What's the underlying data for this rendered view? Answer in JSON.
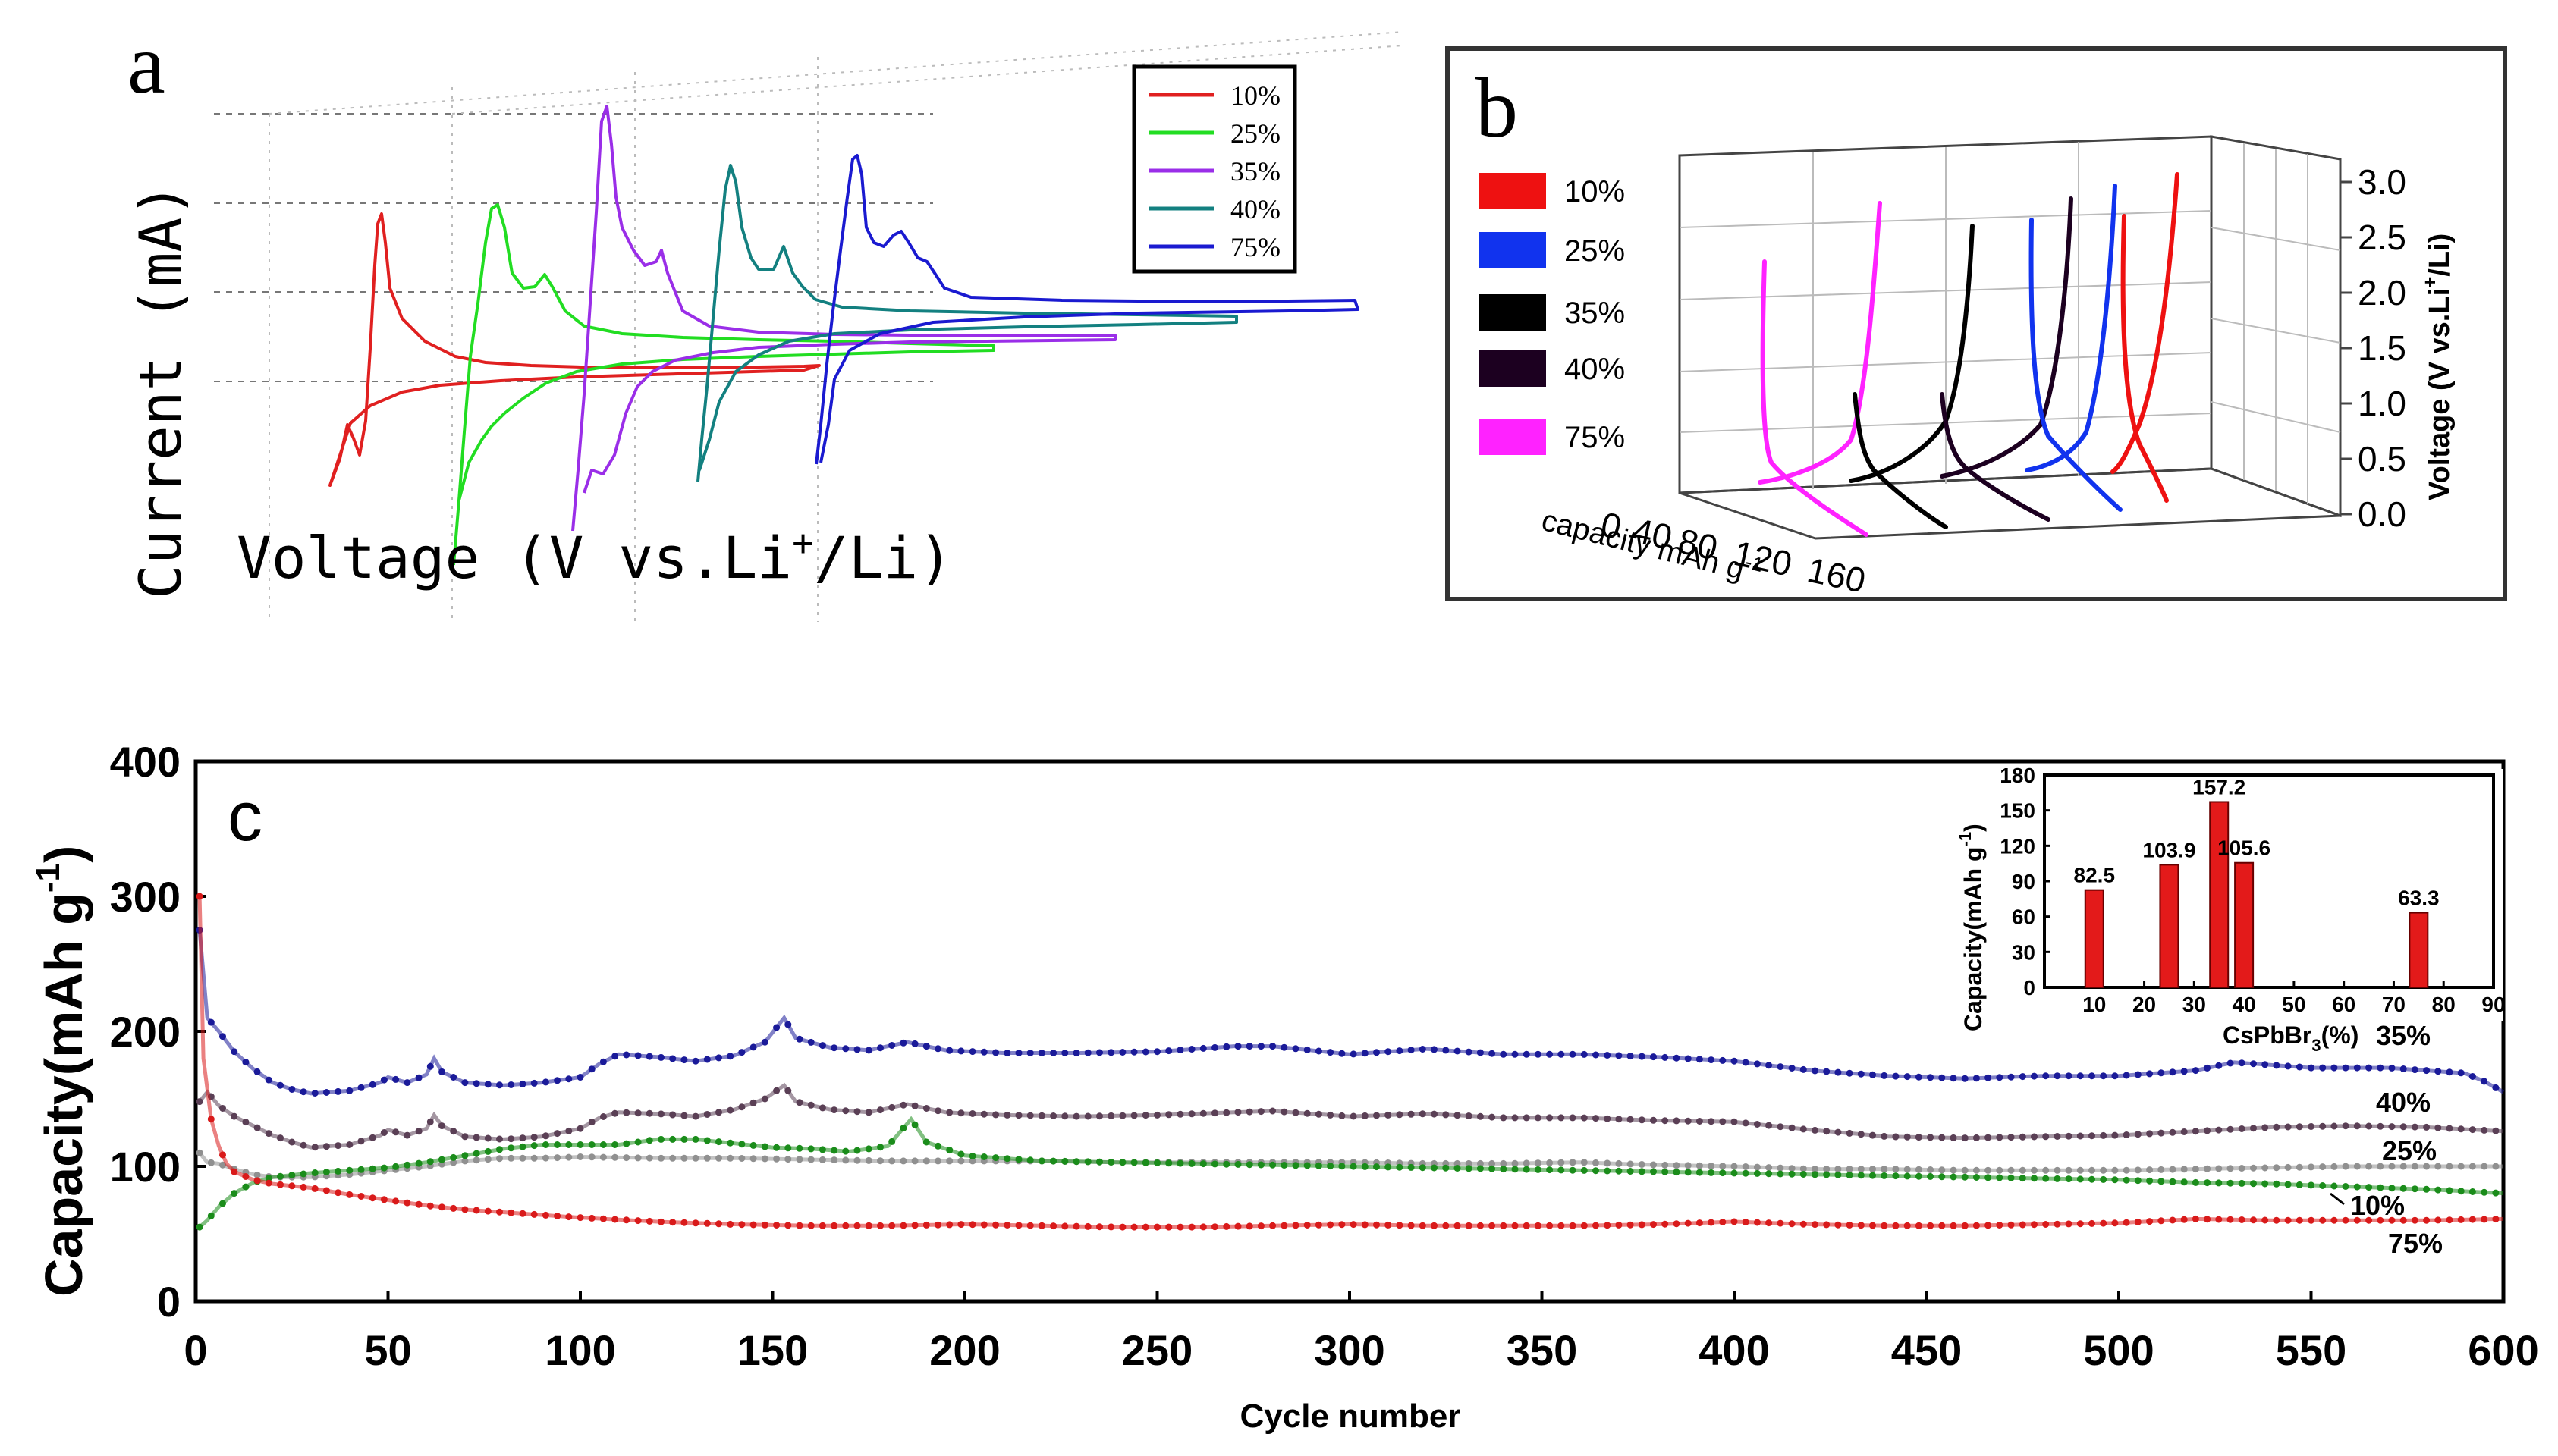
{
  "colors": {
    "pct10": "#e02020",
    "pct25": "#22dd22",
    "pct35": "#9a2ee8",
    "pct40": "#138080",
    "pct75": "#1a1ad0",
    "b10": "#ee1111",
    "b25": "#1133ee",
    "b35": "#000000",
    "b40": "#1c0020",
    "b75": "#ff22ff",
    "c35": "#1a1a99",
    "c40": "#5a3f55",
    "c25": "#909090",
    "c10": "#1a8c1a",
    "c75": "#d91a1a",
    "bar": "#e31a1a"
  },
  "chart_data": [
    {
      "id": "a",
      "type": "line",
      "panel_label": "a",
      "title": "",
      "xlabel_main": "Voltage (V vs.Li",
      "xlabel_sup": "+",
      "xlabel_tail": "/Li)",
      "ylabel": "Current (mA)",
      "grid": true,
      "legend_position": "top-right",
      "series": [
        {
          "name": "10%",
          "color_key": "pct10"
        },
        {
          "name": "25%",
          "color_key": "pct25"
        },
        {
          "name": "35%",
          "color_key": "pct35"
        },
        {
          "name": "40%",
          "color_key": "pct40"
        },
        {
          "name": "75%",
          "color_key": "pct75"
        }
      ]
    },
    {
      "id": "b",
      "type": "line",
      "panel_label": "b",
      "title": "",
      "xlabel": "capacity mAh g",
      "xlabel_sup": "-1",
      "x_ticks": [
        "0",
        "40",
        "80",
        "120",
        "160"
      ],
      "ylabel": "Voltage (V vs.Li",
      "ylabel_sup": "+",
      "ylabel_tail": "/Li)",
      "y_ticks": [
        "0.0",
        "0.5",
        "1.0",
        "1.5",
        "2.0",
        "2.5",
        "3.0"
      ],
      "legend_position": "left",
      "series": [
        {
          "name": "10%",
          "color_key": "b10"
        },
        {
          "name": "25%",
          "color_key": "b25"
        },
        {
          "name": "35%",
          "color_key": "b35"
        },
        {
          "name": "40%",
          "color_key": "b40"
        },
        {
          "name": "75%",
          "color_key": "b75"
        }
      ]
    },
    {
      "id": "c",
      "type": "scatter",
      "panel_label": "c",
      "title": "",
      "xlabel": "Cycle number",
      "ylabel": "Capacity(mAh g",
      "ylabel_sup": "-1",
      "ylabel_tail": ")",
      "xlim": [
        0,
        600
      ],
      "ylim": [
        0,
        400
      ],
      "x_ticks": [
        0,
        50,
        100,
        150,
        200,
        250,
        300,
        350,
        400,
        450,
        500,
        550,
        600
      ],
      "y_ticks": [
        0,
        100,
        200,
        300,
        400
      ],
      "series": [
        {
          "name": "35%",
          "color_key": "c35",
          "points": [
            [
              1,
              275
            ],
            [
              3,
              210
            ],
            [
              6,
              200
            ],
            [
              10,
              185
            ],
            [
              15,
              172
            ],
            [
              20,
              162
            ],
            [
              25,
              157
            ],
            [
              30,
              154
            ],
            [
              40,
              156
            ],
            [
              48,
              162
            ],
            [
              50,
              166
            ],
            [
              55,
              162
            ],
            [
              60,
              168
            ],
            [
              62,
              180
            ],
            [
              64,
              170
            ],
            [
              70,
              162
            ],
            [
              80,
              160
            ],
            [
              90,
              162
            ],
            [
              100,
              166
            ],
            [
              105,
              176
            ],
            [
              110,
              183
            ],
            [
              120,
              181
            ],
            [
              130,
              178
            ],
            [
              140,
              182
            ],
            [
              148,
              192
            ],
            [
              153,
              210
            ],
            [
              156,
              195
            ],
            [
              165,
              188
            ],
            [
              175,
              186
            ],
            [
              185,
              192
            ],
            [
              195,
              186
            ],
            [
              210,
              184
            ],
            [
              230,
              184
            ],
            [
              250,
              185
            ],
            [
              270,
              189
            ],
            [
              280,
              189
            ],
            [
              300,
              183
            ],
            [
              320,
              187
            ],
            [
              340,
              183
            ],
            [
              360,
              183
            ],
            [
              380,
              181
            ],
            [
              400,
              178
            ],
            [
              420,
              171
            ],
            [
              440,
              167
            ],
            [
              460,
              165
            ],
            [
              480,
              167
            ],
            [
              500,
              167
            ],
            [
              520,
              171
            ],
            [
              530,
              177
            ],
            [
              550,
              173
            ],
            [
              570,
              173
            ],
            [
              590,
              169
            ],
            [
              595,
              163
            ],
            [
              600,
              155
            ]
          ]
        },
        {
          "name": "40%",
          "color_key": "c40",
          "points": [
            [
              1,
              148
            ],
            [
              3,
              155
            ],
            [
              6,
              145
            ],
            [
              10,
              137
            ],
            [
              15,
              130
            ],
            [
              20,
              123
            ],
            [
              25,
              118
            ],
            [
              30,
              114
            ],
            [
              40,
              116
            ],
            [
              48,
              123
            ],
            [
              50,
              127
            ],
            [
              55,
              123
            ],
            [
              60,
              128
            ],
            [
              62,
              138
            ],
            [
              64,
              130
            ],
            [
              70,
              122
            ],
            [
              80,
              120
            ],
            [
              90,
              122
            ],
            [
              100,
              128
            ],
            [
              105,
              136
            ],
            [
              110,
              140
            ],
            [
              120,
              139
            ],
            [
              130,
              137
            ],
            [
              140,
              142
            ],
            [
              148,
              150
            ],
            [
              153,
              160
            ],
            [
              156,
              148
            ],
            [
              165,
              142
            ],
            [
              175,
              140
            ],
            [
              185,
              146
            ],
            [
              195,
              140
            ],
            [
              210,
              138
            ],
            [
              230,
              137
            ],
            [
              250,
              138
            ],
            [
              270,
              140
            ],
            [
              280,
              141
            ],
            [
              300,
              137
            ],
            [
              320,
              139
            ],
            [
              340,
              136
            ],
            [
              360,
              136
            ],
            [
              380,
              134
            ],
            [
              400,
              133
            ],
            [
              420,
              127
            ],
            [
              440,
              122
            ],
            [
              460,
              121
            ],
            [
              480,
              122
            ],
            [
              500,
              123
            ],
            [
              520,
              126
            ],
            [
              540,
              129
            ],
            [
              560,
              130
            ],
            [
              580,
              129
            ],
            [
              600,
              126
            ]
          ]
        },
        {
          "name": "25%",
          "color_key": "c25",
          "points": [
            [
              1,
              110
            ],
            [
              3,
              103
            ],
            [
              6,
              102
            ],
            [
              10,
              98
            ],
            [
              15,
              94
            ],
            [
              20,
              92
            ],
            [
              30,
              92
            ],
            [
              40,
              94
            ],
            [
              50,
              97
            ],
            [
              60,
              100
            ],
            [
              70,
              104
            ],
            [
              80,
              106
            ],
            [
              90,
              106
            ],
            [
              100,
              107
            ],
            [
              120,
              106
            ],
            [
              140,
              106
            ],
            [
              160,
              105
            ],
            [
              180,
              104
            ],
            [
              200,
              104
            ],
            [
              220,
              104
            ],
            [
              240,
              103
            ],
            [
              260,
              103
            ],
            [
              280,
              103
            ],
            [
              300,
              103
            ],
            [
              320,
              102
            ],
            [
              340,
              102
            ],
            [
              360,
              103
            ],
            [
              380,
              101
            ],
            [
              400,
              100
            ],
            [
              420,
              98
            ],
            [
              440,
              98
            ],
            [
              460,
              97
            ],
            [
              480,
              97
            ],
            [
              500,
              97
            ],
            [
              520,
              98
            ],
            [
              540,
              99
            ],
            [
              560,
              100
            ],
            [
              580,
              100
            ],
            [
              600,
              100
            ]
          ]
        },
        {
          "name": "10%",
          "color_key": "c10",
          "points": [
            [
              1,
              55
            ],
            [
              3,
              60
            ],
            [
              6,
              70
            ],
            [
              10,
              80
            ],
            [
              15,
              88
            ],
            [
              20,
              92
            ],
            [
              30,
              95
            ],
            [
              40,
              97
            ],
            [
              50,
              99
            ],
            [
              60,
              103
            ],
            [
              70,
              108
            ],
            [
              80,
              113
            ],
            [
              90,
              116
            ],
            [
              100,
              116
            ],
            [
              110,
              116
            ],
            [
              120,
              120
            ],
            [
              130,
              120
            ],
            [
              140,
              117
            ],
            [
              150,
              114
            ],
            [
              160,
              113
            ],
            [
              170,
              111
            ],
            [
              180,
              115
            ],
            [
              186,
              135
            ],
            [
              190,
              118
            ],
            [
              200,
              108
            ],
            [
              220,
              104
            ],
            [
              240,
              103
            ],
            [
              260,
              102
            ],
            [
              280,
              101
            ],
            [
              300,
              100
            ],
            [
              320,
              99
            ],
            [
              340,
              98
            ],
            [
              360,
              97
            ],
            [
              380,
              96
            ],
            [
              400,
              95
            ],
            [
              420,
              94
            ],
            [
              440,
              93
            ],
            [
              460,
              92
            ],
            [
              480,
              91
            ],
            [
              500,
              90
            ],
            [
              520,
              88
            ],
            [
              540,
              87
            ],
            [
              560,
              85
            ],
            [
              580,
              83
            ],
            [
              600,
              80
            ]
          ]
        },
        {
          "name": "75%",
          "color_key": "c75",
          "points": [
            [
              1,
              300
            ],
            [
              2,
              180
            ],
            [
              4,
              135
            ],
            [
              6,
              115
            ],
            [
              8,
              102
            ],
            [
              10,
              96
            ],
            [
              15,
              90
            ],
            [
              20,
              87
            ],
            [
              30,
              84
            ],
            [
              40,
              79
            ],
            [
              50,
              75
            ],
            [
              60,
              71
            ],
            [
              70,
              68
            ],
            [
              80,
              66
            ],
            [
              90,
              64
            ],
            [
              100,
              62
            ],
            [
              120,
              59
            ],
            [
              140,
              57
            ],
            [
              160,
              56
            ],
            [
              180,
              56
            ],
            [
              200,
              57
            ],
            [
              220,
              56
            ],
            [
              240,
              55
            ],
            [
              260,
              55
            ],
            [
              280,
              56
            ],
            [
              300,
              57
            ],
            [
              320,
              56
            ],
            [
              340,
              56
            ],
            [
              360,
              56
            ],
            [
              380,
              57
            ],
            [
              400,
              59
            ],
            [
              420,
              57
            ],
            [
              440,
              56
            ],
            [
              460,
              56
            ],
            [
              480,
              57
            ],
            [
              500,
              58
            ],
            [
              520,
              61
            ],
            [
              540,
              60
            ],
            [
              560,
              60
            ],
            [
              580,
              60
            ],
            [
              600,
              61
            ]
          ]
        }
      ],
      "end_labels": [
        "35%",
        "40%",
        "25%",
        "10%",
        "75%"
      ],
      "inset": {
        "type": "bar",
        "xlabel": "CsPbBr",
        "xlabel_sub": "3",
        "xlabel_tail": "(%)",
        "ylabel": "Capacity(mAh g",
        "ylabel_sup": "-1",
        "ylabel_tail": ")",
        "xlim": [
          0,
          90
        ],
        "ylim": [
          0,
          180
        ],
        "x_ticks": [
          10,
          20,
          30,
          40,
          50,
          60,
          70,
          80,
          90
        ],
        "y_ticks": [
          0,
          30,
          60,
          90,
          120,
          150,
          180
        ],
        "bars": [
          {
            "x": 10,
            "value": 82.5,
            "label": "82.5"
          },
          {
            "x": 25,
            "value": 103.9,
            "label": "103.9"
          },
          {
            "x": 35,
            "value": 157.2,
            "label": "157.2"
          },
          {
            "x": 40,
            "value": 105.6,
            "label": "105.6"
          },
          {
            "x": 75,
            "value": 63.3,
            "label": "63.3"
          }
        ]
      }
    }
  ]
}
